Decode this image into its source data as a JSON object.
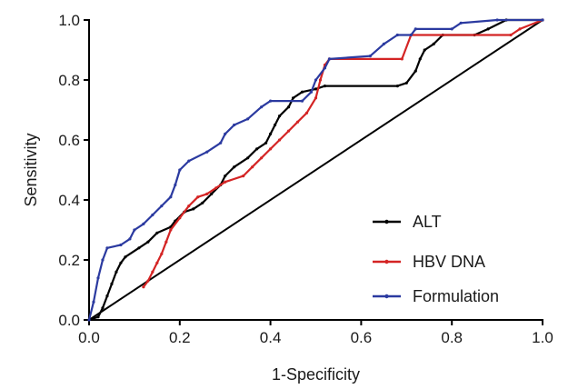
{
  "chart_data": {
    "type": "line",
    "xlabel": "1-Specificity",
    "ylabel": "Sensitivity",
    "xlim": [
      0,
      1
    ],
    "ylim": [
      0,
      1
    ],
    "x_ticks": [
      "0.0",
      "0.2",
      "0.4",
      "0.6",
      "0.8",
      "1.0"
    ],
    "y_ticks": [
      "0.0",
      "0.2",
      "0.4",
      "0.6",
      "0.8",
      "1.0"
    ],
    "grid": false,
    "legend_position": "bottom-right",
    "reference_line": {
      "x": [
        0,
        1
      ],
      "y": [
        0,
        1
      ],
      "color": "#000000"
    },
    "series": [
      {
        "name": "ALT",
        "color": "#000000",
        "points": [
          [
            0.0,
            0.0
          ],
          [
            0.02,
            0.01
          ],
          [
            0.03,
            0.04
          ],
          [
            0.04,
            0.08
          ],
          [
            0.05,
            0.12
          ],
          [
            0.06,
            0.16
          ],
          [
            0.07,
            0.19
          ],
          [
            0.08,
            0.21
          ],
          [
            0.11,
            0.24
          ],
          [
            0.13,
            0.26
          ],
          [
            0.15,
            0.29
          ],
          [
            0.18,
            0.31
          ],
          [
            0.19,
            0.33
          ],
          [
            0.21,
            0.36
          ],
          [
            0.23,
            0.37
          ],
          [
            0.25,
            0.39
          ],
          [
            0.27,
            0.42
          ],
          [
            0.29,
            0.45
          ],
          [
            0.3,
            0.48
          ],
          [
            0.32,
            0.51
          ],
          [
            0.35,
            0.54
          ],
          [
            0.37,
            0.57
          ],
          [
            0.39,
            0.59
          ],
          [
            0.4,
            0.62
          ],
          [
            0.41,
            0.65
          ],
          [
            0.42,
            0.68
          ],
          [
            0.44,
            0.71
          ],
          [
            0.45,
            0.74
          ],
          [
            0.47,
            0.76
          ],
          [
            0.5,
            0.77
          ],
          [
            0.52,
            0.78
          ],
          [
            0.68,
            0.78
          ],
          [
            0.7,
            0.79
          ],
          [
            0.72,
            0.83
          ],
          [
            0.73,
            0.87
          ],
          [
            0.74,
            0.9
          ],
          [
            0.76,
            0.92
          ],
          [
            0.78,
            0.95
          ],
          [
            0.85,
            0.95
          ],
          [
            0.88,
            0.97
          ],
          [
            0.92,
            1.0
          ],
          [
            1.0,
            1.0
          ]
        ]
      },
      {
        "name": "HBV DNA",
        "color": "#d42424",
        "points": [
          [
            0.12,
            0.11
          ],
          [
            0.13,
            0.13
          ],
          [
            0.14,
            0.16
          ],
          [
            0.15,
            0.19
          ],
          [
            0.16,
            0.22
          ],
          [
            0.17,
            0.26
          ],
          [
            0.18,
            0.3
          ],
          [
            0.2,
            0.34
          ],
          [
            0.22,
            0.38
          ],
          [
            0.24,
            0.41
          ],
          [
            0.26,
            0.42
          ],
          [
            0.28,
            0.44
          ],
          [
            0.3,
            0.46
          ],
          [
            0.34,
            0.48
          ],
          [
            0.36,
            0.51
          ],
          [
            0.38,
            0.54
          ],
          [
            0.4,
            0.57
          ],
          [
            0.42,
            0.6
          ],
          [
            0.44,
            0.63
          ],
          [
            0.46,
            0.66
          ],
          [
            0.48,
            0.69
          ],
          [
            0.5,
            0.74
          ],
          [
            0.51,
            0.8
          ],
          [
            0.52,
            0.85
          ],
          [
            0.53,
            0.87
          ],
          [
            0.69,
            0.87
          ],
          [
            0.71,
            0.95
          ],
          [
            0.93,
            0.95
          ],
          [
            0.95,
            0.97
          ],
          [
            1.0,
            1.0
          ]
        ]
      },
      {
        "name": "Formulation",
        "color": "#2b3aa0",
        "points": [
          [
            0.0,
            0.0
          ],
          [
            0.01,
            0.06
          ],
          [
            0.02,
            0.14
          ],
          [
            0.03,
            0.2
          ],
          [
            0.04,
            0.24
          ],
          [
            0.07,
            0.25
          ],
          [
            0.09,
            0.27
          ],
          [
            0.1,
            0.3
          ],
          [
            0.12,
            0.32
          ],
          [
            0.14,
            0.35
          ],
          [
            0.16,
            0.38
          ],
          [
            0.18,
            0.41
          ],
          [
            0.19,
            0.45
          ],
          [
            0.2,
            0.5
          ],
          [
            0.22,
            0.53
          ],
          [
            0.26,
            0.56
          ],
          [
            0.29,
            0.59
          ],
          [
            0.3,
            0.62
          ],
          [
            0.32,
            0.65
          ],
          [
            0.35,
            0.67
          ],
          [
            0.38,
            0.71
          ],
          [
            0.4,
            0.73
          ],
          [
            0.47,
            0.73
          ],
          [
            0.49,
            0.76
          ],
          [
            0.5,
            0.8
          ],
          [
            0.52,
            0.84
          ],
          [
            0.53,
            0.87
          ],
          [
            0.62,
            0.88
          ],
          [
            0.65,
            0.92
          ],
          [
            0.68,
            0.95
          ],
          [
            0.71,
            0.95
          ],
          [
            0.72,
            0.97
          ],
          [
            0.8,
            0.97
          ],
          [
            0.82,
            0.99
          ],
          [
            0.9,
            1.0
          ],
          [
            1.0,
            1.0
          ]
        ]
      }
    ]
  }
}
